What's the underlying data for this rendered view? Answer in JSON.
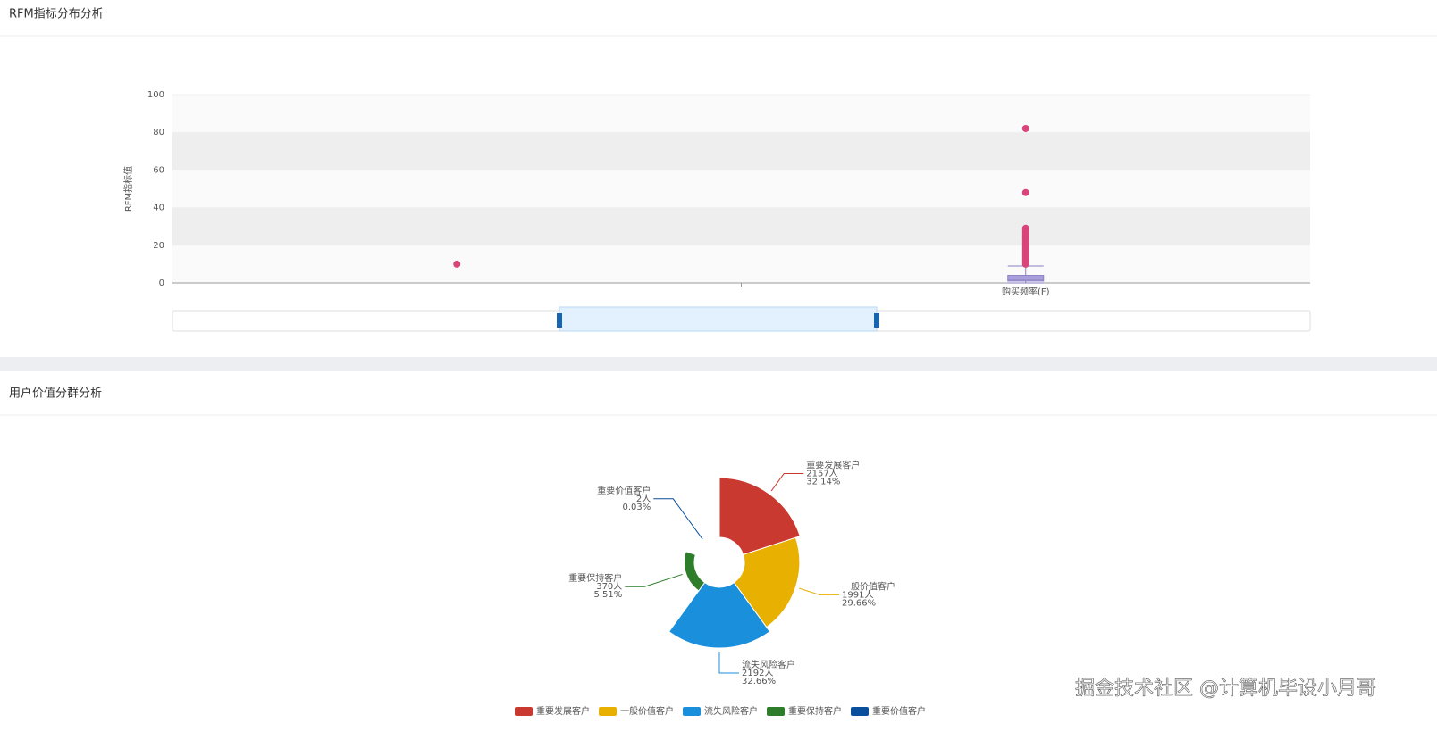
{
  "chart_data": [
    {
      "type": "boxplot",
      "title": "RFM指标分布分析",
      "y_label": "RFM指标值",
      "categories": [
        null,
        "购买频率(F)"
      ],
      "box_values": [
        null,
        [
          0,
          1,
          2,
          4,
          9
        ]
      ],
      "outliers": [
        [
          10
        ],
        [
          82,
          48,
          29,
          28,
          27,
          26,
          25,
          24,
          23,
          22,
          21,
          20,
          19,
          18,
          17,
          16,
          15,
          14,
          13,
          12,
          11,
          10
        ]
      ],
      "ylim": [
        0,
        100
      ],
      "yticks": [
        0,
        20,
        40,
        60,
        80,
        100
      ],
      "split_area": true,
      "box_color": "#a99fdc",
      "outlier_color": "#d9447a"
    },
    {
      "type": "pie",
      "rose": "area",
      "title": "用户价值分群分析",
      "categories": [
        "重要发展客户",
        "一般价值客户",
        "流失风险客户",
        "重要保持客户",
        "重要价值客户"
      ],
      "values": [
        2157,
        1991,
        2192,
        370,
        2
      ],
      "value_labels": [
        "2157人",
        "1991人",
        "2192人",
        "370人",
        "2人"
      ],
      "percent_labels": [
        "32.14%",
        "29.66%",
        "32.66%",
        "5.51%",
        "0.03%"
      ],
      "colors": [
        "#c9392f",
        "#e8b000",
        "#1a8fdc",
        "#2e7d2a",
        "#0a4f9c"
      ],
      "legend": "bottom"
    }
  ],
  "watermark": "掘金技术社区 @计算机毕设小月哥"
}
